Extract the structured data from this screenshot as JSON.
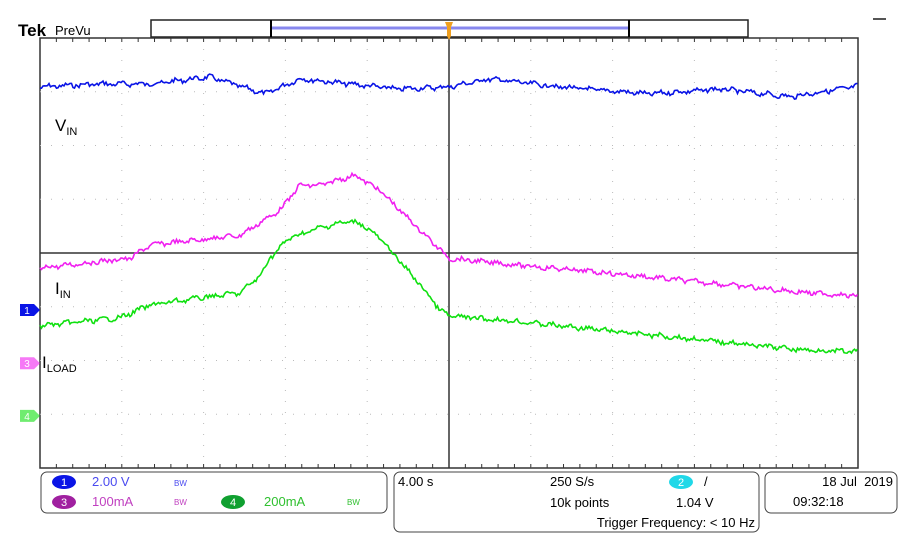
{
  "header": {
    "brand": "Tek",
    "mode": "PreVu"
  },
  "colors": {
    "ch1": "#0a14e6",
    "ch3": "#f020f0",
    "ch4": "#10e010",
    "trigger": "#f0a020",
    "ch2": "#20d8e8",
    "ch3_badge": "#a020a0",
    "ch4_badge": "#10a030"
  },
  "trace_labels": {
    "vin": {
      "main": "V",
      "sub": "IN"
    },
    "iin": {
      "main": "I",
      "sub": "IN"
    },
    "iload": {
      "main": "I",
      "sub": "LOAD"
    }
  },
  "channels": [
    {
      "num": "1",
      "scale": "2.00 V",
      "coupling_icon": "bandwidth-limit-icon"
    },
    {
      "num": "3",
      "scale": "100mA",
      "coupling_icon": "bandwidth-limit-icon"
    },
    {
      "num": "4",
      "scale": "200mA",
      "coupling_icon": "bandwidth-limit-icon"
    }
  ],
  "timebase": {
    "scale": "4.00 s",
    "sample_rate": "250 S/s",
    "record_length": "10k points"
  },
  "trigger": {
    "source": "2",
    "slope_icon": "rising-edge-icon",
    "slope": "/",
    "level": "1.04 V",
    "frequency": "Trigger Frequency: < 10 Hz"
  },
  "datetime": {
    "date": "18 Jul  2019",
    "time": "09:32:18"
  },
  "chart_data": {
    "type": "line",
    "grid": true,
    "x_divisions": 10,
    "y_divisions": 8,
    "xlim": [
      -20,
      20
    ],
    "x_unit": "s",
    "series": [
      {
        "name": "VIN",
        "channel": 1,
        "unit": "V",
        "per_div": 2,
        "offset_div": -1.06,
        "x": [
          -20,
          -17.07,
          -14.6,
          -11.7,
          -9.0,
          -7.3,
          -2.4,
          0,
          2.0,
          5.4,
          9.8,
          13.3,
          16.7,
          20
        ],
        "y": [
          8.3,
          8.41,
          8.41,
          8.67,
          8.04,
          8.6,
          8.22,
          8.3,
          8.6,
          8.3,
          8.04,
          8.22,
          7.93,
          8.33
        ]
      },
      {
        "name": "IIN",
        "channel": 3,
        "unit": "mA",
        "per_div": 100,
        "offset_div": -2.05,
        "x": [
          -20,
          -15.6,
          -14.6,
          -10.2,
          -8.26,
          -7.3,
          -6.3,
          -4.6,
          -3.4,
          -1.4,
          0,
          3.5,
          7.4,
          12.3,
          17.2,
          20
        ],
        "y": [
          177,
          195,
          220,
          238,
          285,
          331,
          331,
          350,
          322,
          247,
          195,
          182,
          169,
          151,
          132,
          125
        ]
      },
      {
        "name": "ILOAD",
        "channel": 4,
        "unit": "mA",
        "per_div": 200,
        "offset_div": -3.03,
        "x": [
          -20,
          -16.09,
          -14.6,
          -12.2,
          -10.2,
          -9.2,
          -8.75,
          -7.8,
          -6.3,
          -5.1,
          -4.35,
          -3.4,
          -1.4,
          -0.44,
          0,
          3.5,
          7.4,
          12.3,
          17.2,
          20
        ],
        "y": [
          335,
          365,
          413,
          439,
          458,
          525,
          588,
          662,
          700,
          722,
          718,
          662,
          487,
          394,
          372,
          350,
          320,
          283,
          246,
          238
        ]
      }
    ]
  }
}
